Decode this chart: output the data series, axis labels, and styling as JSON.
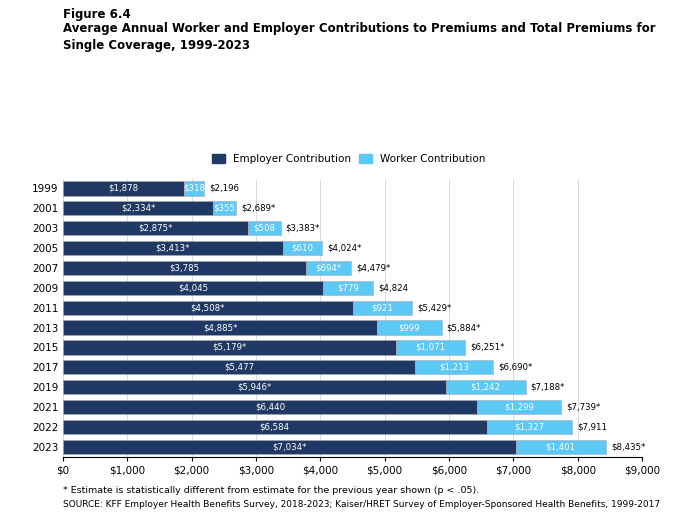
{
  "title_line1": "Figure 6.4",
  "title_line2": "Average Annual Worker and Employer Contributions to Premiums and Total Premiums for\nSingle Coverage, 1999-2023",
  "years": [
    "1999",
    "2001",
    "2003",
    "2005",
    "2007",
    "2009",
    "2011",
    "2013",
    "2015",
    "2017",
    "2019",
    "2021",
    "2022",
    "2023"
  ],
  "employer": [
    1878,
    2334,
    2875,
    3413,
    3785,
    4045,
    4508,
    4885,
    5179,
    5477,
    5946,
    6440,
    6584,
    7034
  ],
  "worker": [
    318,
    355,
    508,
    610,
    694,
    779,
    921,
    999,
    1071,
    1213,
    1242,
    1299,
    1327,
    1401
  ],
  "total": [
    2196,
    2689,
    3383,
    4024,
    4479,
    4824,
    5429,
    5884,
    6251,
    6690,
    7188,
    7739,
    7911,
    8435
  ],
  "employer_labels": [
    "$1,878",
    "$2,334*",
    "$2,875*",
    "$3,413*",
    "$3,785",
    "$4,045",
    "$4,508*",
    "$4,885*",
    "$5,179*",
    "$5,477",
    "$5,946*",
    "$6,440",
    "$6,584",
    "$7,034*"
  ],
  "worker_labels": [
    "$318",
    "$355",
    "$508",
    "$610",
    "$694*",
    "$779",
    "$921",
    "$999",
    "$1,071",
    "$1,213",
    "$1,242",
    "$1,299",
    "$1,327",
    "$1,401"
  ],
  "total_labels": [
    "$2,196",
    "$2,689*",
    "$3,383*",
    "$4,024*",
    "$4,479*",
    "$4,824",
    "$5,429*",
    "$5,884*",
    "$6,251*",
    "$6,690*",
    "$7,188*",
    "$7,739*",
    "$7,911",
    "$8,435*"
  ],
  "employer_color": "#1F3864",
  "worker_color": "#5BC8F5",
  "xlim": [
    0,
    9000
  ],
  "xticks": [
    0,
    1000,
    2000,
    3000,
    4000,
    5000,
    6000,
    7000,
    8000,
    9000
  ],
  "xtick_labels": [
    "$0",
    "$1,000",
    "$2,000",
    "$3,000",
    "$4,000",
    "$5,000",
    "$6,000",
    "$7,000",
    "$8,000",
    "$9,000"
  ],
  "footnote1": "* Estimate is statistically different from estimate for the previous year shown (p < .05).",
  "footnote2": "SOURCE: KFF Employer Health Benefits Survey, 2018-2023; Kaiser/HRET Survey of Employer-Sponsored Health Benefits, 1999-2017",
  "bar_height": 0.72,
  "bar_sep_color": "#aaaaaa"
}
